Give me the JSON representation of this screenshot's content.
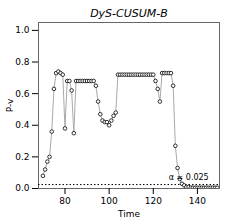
{
  "chart_data": {
    "type": "line",
    "title": "DyS-CUSUM-B",
    "xlabel": "Time",
    "ylabel": "P-v",
    "x": [
      70,
      71,
      72,
      73,
      74,
      75,
      76,
      77,
      78,
      79,
      80,
      81,
      82,
      83,
      84,
      85,
      86,
      87,
      88,
      89,
      90,
      91,
      92,
      93,
      94,
      95,
      96,
      97,
      98,
      99,
      100,
      101,
      102,
      103,
      104,
      105,
      106,
      107,
      108,
      109,
      110,
      111,
      112,
      113,
      114,
      115,
      116,
      117,
      118,
      119,
      120,
      121,
      122,
      123,
      124,
      125,
      126,
      127,
      128,
      129,
      130,
      131,
      132,
      133,
      134,
      135,
      136,
      137,
      138,
      139,
      140,
      141,
      142,
      143,
      144,
      145,
      146,
      147,
      148,
      149
    ],
    "values": [
      0.08,
      0.12,
      0.17,
      0.2,
      0.36,
      0.63,
      0.73,
      0.74,
      0.73,
      0.72,
      0.38,
      0.68,
      0.68,
      0.62,
      0.35,
      0.68,
      0.68,
      0.68,
      0.68,
      0.68,
      0.68,
      0.68,
      0.68,
      0.68,
      0.65,
      0.55,
      0.47,
      0.43,
      0.42,
      0.42,
      0.4,
      0.43,
      0.46,
      0.48,
      0.72,
      0.72,
      0.72,
      0.72,
      0.72,
      0.72,
      0.72,
      0.72,
      0.72,
      0.72,
      0.72,
      0.72,
      0.72,
      0.72,
      0.72,
      0.72,
      0.72,
      0.68,
      0.63,
      0.55,
      0.73,
      0.73,
      0.73,
      0.73,
      0.73,
      0.65,
      0.27,
      0.13,
      0.06,
      0.03,
      0.02,
      0.01,
      0.01,
      0.005,
      0.005,
      0.005,
      0.005,
      0.005,
      0.005,
      0.005,
      0.005,
      0.005,
      0.005,
      0.005,
      0.005,
      0.005
    ],
    "color": "#aaaaaa",
    "marker": "circle",
    "xlim": [
      68,
      150
    ],
    "xticks": [
      80,
      100,
      120,
      140
    ],
    "ylim": [
      0.0,
      1.05
    ],
    "yticks": [
      {
        "value": 0.0,
        "label": "0.0"
      },
      0.2,
      0.4,
      0.6,
      0.8,
      {
        "value": 1.0,
        "label": "1.0"
      }
    ],
    "annotations": [
      {
        "text": "α = 0.025",
        "x": 127,
        "y": 0.025,
        "line_style": "dotted"
      }
    ],
    "grid": false
  }
}
